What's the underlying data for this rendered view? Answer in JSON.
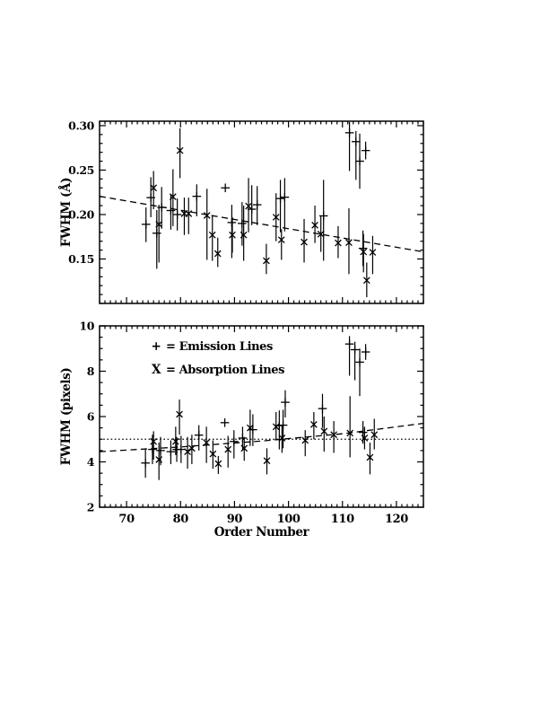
{
  "figure": {
    "background": "#ffffff",
    "ink": "#000000",
    "legend": {
      "entries": [
        {
          "symbol": "+",
          "text": "= Emission Lines",
          "series": "Emission Lines"
        },
        {
          "symbol": "X",
          "text": "= Absorption Lines",
          "series": "Absorption Lines"
        }
      ]
    }
  },
  "chart_data": [
    {
      "type": "scatter",
      "title": "",
      "xlabel": "",
      "ylabel": "FWHM (Å)",
      "xlim": [
        65,
        125
      ],
      "ylim": [
        0.1,
        0.305
      ],
      "grid": false,
      "x_minor_step": 1,
      "y_minor_step": 0.01,
      "xticks": [
        {
          "v": 70,
          "label": "70"
        },
        {
          "v": 80,
          "label": "80"
        },
        {
          "v": 90,
          "label": "90"
        },
        {
          "v": 100,
          "label": "100"
        },
        {
          "v": 110,
          "label": "110"
        },
        {
          "v": 120,
          "label": "120"
        }
      ],
      "yticks": [
        {
          "v": 0.15,
          "label": "0.15"
        },
        {
          "v": 0.2,
          "label": "0.20"
        },
        {
          "v": 0.25,
          "label": "0.25"
        },
        {
          "v": 0.3,
          "label": "0.30"
        }
      ],
      "series": [
        {
          "name": "Emission Lines",
          "marker": "plus",
          "points": [
            [
              73.6,
              0.189,
              0.169,
              0.208
            ],
            [
              74.5,
              0.219,
              0.197,
              0.242
            ],
            [
              75.6,
              0.179,
              0.139,
              0.205
            ],
            [
              76.5,
              0.208,
              0.184,
              0.231
            ],
            [
              78.2,
              0.2045,
              0.183,
              0.222
            ],
            [
              79.4,
              0.2,
              0.182,
              0.218
            ],
            [
              83.0,
              0.2205,
              0.198,
              0.234
            ],
            [
              88.3,
              0.23,
              null,
              null
            ],
            [
              89.5,
              0.191,
              0.151,
              0.211
            ],
            [
              91.4,
              0.19,
              0.165,
              0.214
            ],
            [
              93.2,
              0.206,
              0.188,
              0.233
            ],
            [
              94.2,
              0.211,
              0.188,
              0.232
            ],
            [
              98.5,
              0.218,
              0.18,
              0.239
            ],
            [
              99.3,
              0.2195,
              0.181,
              0.241
            ],
            [
              106.5,
              0.1985,
              0.148,
              0.239
            ],
            [
              111.3,
              0.292,
              0.249,
              0.304
            ],
            [
              112.5,
              0.282,
              0.239,
              0.294
            ],
            [
              113.2,
              0.26,
              0.229,
              0.291
            ],
            [
              114.3,
              0.272,
              0.262,
              0.282
            ],
            [
              113.8,
              0.162,
              0.142,
              0.182
            ]
          ]
        },
        {
          "name": "Absorption Lines",
          "marker": "cross",
          "points": [
            [
              75.0,
              0.23,
              0.206,
              0.249
            ],
            [
              76.0,
              0.189,
              0.146,
              0.211
            ],
            [
              78.6,
              0.22,
              0.187,
              0.251
            ],
            [
              79.9,
              0.272,
              0.241,
              0.297
            ],
            [
              80.7,
              0.201,
              0.177,
              0.219
            ],
            [
              81.5,
              0.201,
              0.178,
              0.219
            ],
            [
              84.9,
              0.199,
              0.149,
              0.229
            ],
            [
              85.9,
              0.177,
              0.148,
              0.199
            ],
            [
              86.9,
              0.156,
              0.141,
              0.174
            ],
            [
              89.6,
              0.177,
              0.157,
              0.197
            ],
            [
              91.7,
              0.177,
              0.148,
              0.21
            ],
            [
              92.6,
              0.2095,
              0.18,
              0.241
            ],
            [
              95.9,
              0.148,
              0.133,
              0.167
            ],
            [
              97.7,
              0.197,
              0.17,
              0.224
            ],
            [
              98.7,
              0.1715,
              0.149,
              0.1835
            ],
            [
              102.9,
              0.169,
              0.146,
              0.195
            ],
            [
              104.9,
              0.188,
              0.168,
              0.21
            ],
            [
              106.0,
              0.178,
              0.158,
              0.198
            ],
            [
              109.2,
              0.168,
              0.151,
              0.187
            ],
            [
              111.2,
              0.1685,
              0.133,
              0.207
            ],
            [
              113.9,
              0.158,
              0.135,
              0.178
            ],
            [
              115.6,
              0.1575,
              0.133,
              0.176
            ],
            [
              114.5,
              0.126,
              0.107,
              0.146
            ]
          ]
        }
      ],
      "fit_line": {
        "style": "dashed",
        "points": [
          [
            65,
            0.2205
          ],
          [
            125,
            0.158
          ]
        ]
      }
    },
    {
      "type": "scatter",
      "title": "",
      "xlabel": "Order Number",
      "ylabel": "FWHM (pixels)",
      "xlim": [
        65,
        125
      ],
      "ylim": [
        2,
        10
      ],
      "grid": false,
      "x_minor_step": 1,
      "y_minor_step": 0.5,
      "xticks": [
        {
          "v": 70,
          "label": "70"
        },
        {
          "v": 80,
          "label": "80"
        },
        {
          "v": 90,
          "label": "90"
        },
        {
          "v": 100,
          "label": "100"
        },
        {
          "v": 110,
          "label": "110"
        },
        {
          "v": 120,
          "label": "120"
        }
      ],
      "yticks": [
        {
          "v": 2,
          "label": "2"
        },
        {
          "v": 4,
          "label": "4"
        },
        {
          "v": 6,
          "label": "6"
        },
        {
          "v": 8,
          "label": "8"
        },
        {
          "v": 10,
          "label": "10"
        }
      ],
      "series": [
        {
          "name": "Emission Lines",
          "marker": "plus",
          "points": [
            [
              73.5,
              3.95,
              3.3,
              4.6
            ],
            [
              74.8,
              4.55,
              3.9,
              5.2
            ],
            [
              76.3,
              4.5,
              3.85,
              5.1
            ],
            [
              78.2,
              4.45,
              3.9,
              4.95
            ],
            [
              79.3,
              4.55,
              4.0,
              5.1
            ],
            [
              80.1,
              4.55,
              3.95,
              5.15
            ],
            [
              83.4,
              5.18,
              4.5,
              5.62
            ],
            [
              88.2,
              5.73,
              null,
              null
            ],
            [
              89.9,
              4.9,
              4.15,
              5.4
            ],
            [
              91.5,
              5.05,
              4.55,
              5.55
            ],
            [
              93.4,
              5.42,
              4.7,
              6.1
            ],
            [
              98.3,
              5.6,
              4.55,
              6.27
            ],
            [
              99.0,
              5.62,
              4.6,
              6.3
            ],
            [
              99.4,
              6.63,
              5.96,
              7.16
            ],
            [
              106.3,
              6.35,
              5.5,
              7.0
            ],
            [
              111.3,
              9.2,
              7.8,
              9.55
            ],
            [
              112.3,
              8.95,
              7.6,
              9.3
            ],
            [
              113.2,
              8.4,
              6.9,
              9.0
            ],
            [
              114.3,
              8.85,
              8.5,
              9.2
            ],
            [
              113.8,
              5.3,
              4.8,
              5.8
            ]
          ]
        },
        {
          "name": "Absorption Lines",
          "marker": "cross",
          "points": [
            [
              75.0,
              4.9,
              4.1,
              5.35
            ],
            [
              76.0,
              4.1,
              3.2,
              4.85
            ],
            [
              79.1,
              4.9,
              4.3,
              5.55
            ],
            [
              79.8,
              6.1,
              5.2,
              6.75
            ],
            [
              81.3,
              4.45,
              3.7,
              5.1
            ],
            [
              82.1,
              4.6,
              3.9,
              5.2
            ],
            [
              84.8,
              4.85,
              3.95,
              5.55
            ],
            [
              86.0,
              4.35,
              3.7,
              4.95
            ],
            [
              87.0,
              3.92,
              3.47,
              4.26
            ],
            [
              88.8,
              4.55,
              3.75,
              5.15
            ],
            [
              91.8,
              4.6,
              4.05,
              5.1
            ],
            [
              92.9,
              5.5,
              4.7,
              6.3
            ],
            [
              96.0,
              4.05,
              3.45,
              4.6
            ],
            [
              97.7,
              5.55,
              4.95,
              6.2
            ],
            [
              98.8,
              5.05,
              4.4,
              5.6
            ],
            [
              103.1,
              4.95,
              4.25,
              5.4
            ],
            [
              104.7,
              5.65,
              5.0,
              6.2
            ],
            [
              106.6,
              5.35,
              4.45,
              6.0
            ],
            [
              108.4,
              5.2,
              4.4,
              5.8
            ],
            [
              111.4,
              5.27,
              4.2,
              6.9
            ],
            [
              114.1,
              5.05,
              4.55,
              5.55
            ],
            [
              115.9,
              5.2,
              4.55,
              5.9
            ],
            [
              115.1,
              4.2,
              3.45,
              4.85
            ]
          ]
        }
      ],
      "fit_line": {
        "style": "dashed",
        "points": [
          [
            65,
            4.45
          ],
          [
            80,
            4.66
          ],
          [
            95,
            4.92
          ],
          [
            110,
            5.24
          ],
          [
            125,
            5.7
          ]
        ]
      },
      "reference_line": {
        "style": "dotted",
        "y": 5.0
      }
    }
  ]
}
